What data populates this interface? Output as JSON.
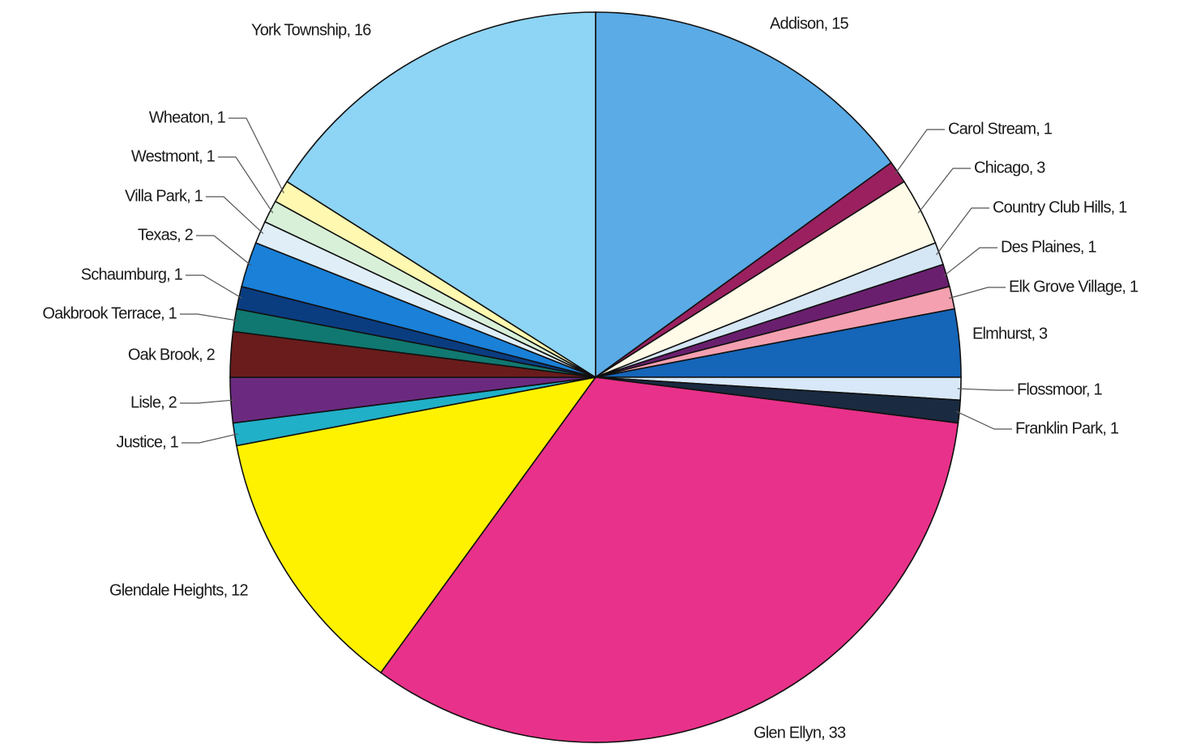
{
  "chart_data": {
    "type": "pie",
    "values": [
      15,
      1,
      3,
      1,
      1,
      1,
      3,
      1,
      1,
      33,
      12,
      1,
      2,
      2,
      1,
      1,
      2,
      1,
      1,
      1,
      16
    ],
    "value_labels": [
      "Addison, 15",
      "Carol Stream, 1",
      "Chicago, 3",
      "Country Club Hills, 1",
      "Des Plaines, 1",
      "Elk Grove Village, 1",
      "Elmhurst, 3",
      "Flossmoor, 1",
      "Franklin Park, 1",
      "Glen Ellyn, 33",
      "Glendale Heights, 12",
      "Justice, 1",
      "Lisle, 2",
      "Oak Brook, 2",
      "Oakbrook Terrace, 1",
      "Schaumburg, 1",
      "Texas, 2",
      "Villa Park, 1",
      "Westmont, 1",
      "Wheaton, 1",
      "York Township, 16"
    ],
    "colors": [
      "#5aabe6",
      "#9b2060",
      "#fffbe8",
      "#d5e6f5",
      "#6a1f6e",
      "#f4a0b0",
      "#1565b8",
      "#d8e8f8",
      "#1a2a40",
      "#e8318a",
      "#fff200",
      "#20b0c8",
      "#6b2a80",
      "#6a1c1c",
      "#107870",
      "#0a3c80",
      "#1a80d8",
      "#e0eef8",
      "#d8f0d8",
      "#fff8b0",
      "#8ed4f4"
    ]
  }
}
